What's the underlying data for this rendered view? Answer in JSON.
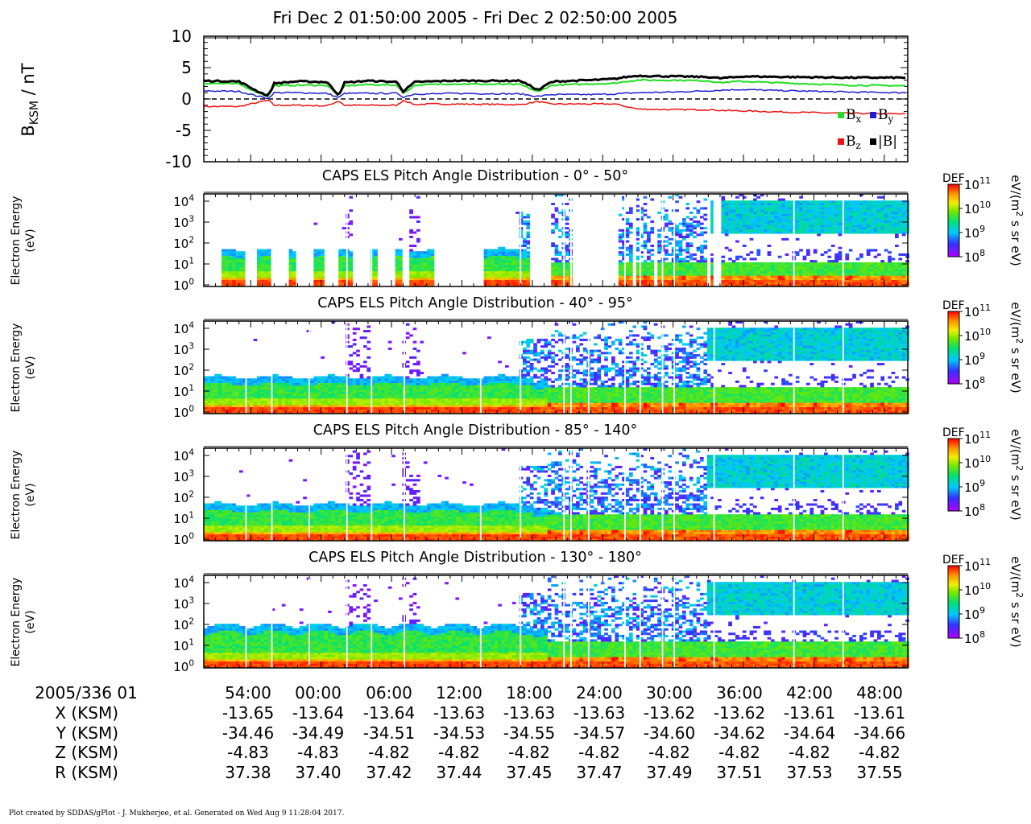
{
  "header": {
    "title": "Fri Dec 2 01:50:00 2005 - Fri Dec 2 02:50:00 2005"
  },
  "chart_data": [
    {
      "type": "line",
      "ylabel_main": "B",
      "ylabel_sub": "KSM",
      "ylabel_unit": " / nT",
      "ylim": [
        -10,
        10
      ],
      "yticks": [
        "10",
        "5",
        "0",
        "-5",
        "-10"
      ],
      "zero_line": "dashed",
      "legend": [
        {
          "main": "B",
          "sub": "x",
          "color": "#22dd22"
        },
        {
          "main": "B",
          "sub": "y",
          "color": "#1f1fd0"
        },
        {
          "main": "B",
          "sub": "z",
          "color": "#ee1111"
        },
        {
          "main": "|B|",
          "sub": "",
          "color": "#000000"
        }
      ],
      "x_minutes": [
        0,
        3,
        4.5,
        5.5,
        6,
        8,
        10.5,
        11.5,
        12,
        14,
        16.5,
        17,
        18,
        19.5,
        21,
        27,
        28.5,
        29.5,
        30,
        33,
        35,
        36,
        37,
        40,
        43,
        44,
        45.5,
        46,
        50,
        55,
        60
      ],
      "series": [
        {
          "name": "|B|",
          "color": "#000000",
          "width": 3,
          "values": [
            2.9,
            2.8,
            1.3,
            0.5,
            2.5,
            2.8,
            2.7,
            0.6,
            2.6,
            2.9,
            2.7,
            1.2,
            2.7,
            2.8,
            2.9,
            2.9,
            1.4,
            2.6,
            2.8,
            3.0,
            3.2,
            3.5,
            3.7,
            3.6,
            3.5,
            3.3,
            3.5,
            3.6,
            3.5,
            3.4,
            3.4
          ]
        },
        {
          "name": "Bx",
          "color": "#22dd22",
          "width": 2,
          "values": [
            2.5,
            2.4,
            1.1,
            0.4,
            2.1,
            2.2,
            2.2,
            0.5,
            2.1,
            2.3,
            2.2,
            0.9,
            2.2,
            2.3,
            2.4,
            2.3,
            1.1,
            2.1,
            2.2,
            2.4,
            2.5,
            2.8,
            3.0,
            3.0,
            2.9,
            2.6,
            2.8,
            2.8,
            2.5,
            2.2,
            2.1
          ]
        },
        {
          "name": "By",
          "color": "#1f1fd0",
          "width": 1.5,
          "values": [
            1.3,
            1.2,
            0.5,
            0.1,
            1.0,
            1.0,
            0.9,
            0.2,
            0.9,
            0.9,
            0.9,
            0.3,
            0.8,
            0.8,
            0.9,
            0.8,
            0.4,
            0.7,
            0.7,
            0.7,
            0.8,
            0.9,
            1.0,
            1.1,
            1.3,
            1.4,
            1.5,
            1.5,
            1.3,
            1.1,
            1.0
          ]
        },
        {
          "name": "Bz",
          "color": "#ee1111",
          "width": 1.5,
          "values": [
            -1.2,
            -1.2,
            -0.6,
            -0.2,
            -1.0,
            -1.0,
            -1.1,
            -0.3,
            -1.0,
            -1.0,
            -1.0,
            -0.2,
            -0.9,
            -0.8,
            -0.8,
            -0.9,
            -0.4,
            -0.8,
            -0.8,
            -0.8,
            -0.8,
            -1.2,
            -1.6,
            -1.7,
            -1.7,
            -1.8,
            -1.9,
            -1.9,
            -2.1,
            -2.3,
            -2.4
          ]
        }
      ]
    },
    {
      "type": "heatmap",
      "title": "CAPS ELS Pitch Angle Distribution - 0° - 50°",
      "mode": "pa1",
      "ylabel": [
        "Electron Energy",
        "(eV)"
      ],
      "yticks": [
        "10",
        "10",
        "10",
        "10",
        "10"
      ],
      "yexp": [
        "0",
        "1",
        "2",
        "3",
        "4"
      ],
      "colorbar": {
        "label": "DEF",
        "unit": "eV/(m² s sr eV)",
        "ticks": [
          "10",
          "10",
          "10",
          "10"
        ],
        "exps": [
          "11",
          "10",
          "9",
          "8"
        ]
      }
    },
    {
      "type": "heatmap",
      "title": "CAPS ELS Pitch Angle Distribution - 40° - 95°",
      "mode": "pa2",
      "ylabel": [
        "Electron Energy",
        "(eV)"
      ],
      "yticks": [
        "10",
        "10",
        "10",
        "10",
        "10"
      ],
      "yexp": [
        "0",
        "1",
        "2",
        "3",
        "4"
      ],
      "colorbar": {
        "label": "DEF",
        "unit": "eV/(m² s sr eV)",
        "ticks": [
          "10",
          "10",
          "10",
          "10"
        ],
        "exps": [
          "11",
          "10",
          "9",
          "8"
        ]
      }
    },
    {
      "type": "heatmap",
      "title": "CAPS ELS Pitch Angle Distribution - 85° - 140°",
      "mode": "pa3",
      "ylabel": [
        "Electron Energy",
        "(eV)"
      ],
      "yticks": [
        "10",
        "10",
        "10",
        "10",
        "10"
      ],
      "yexp": [
        "0",
        "1",
        "2",
        "3",
        "4"
      ],
      "colorbar": {
        "label": "DEF",
        "unit": "eV/(m² s sr eV)",
        "ticks": [
          "10",
          "10",
          "10",
          "10"
        ],
        "exps": [
          "11",
          "10",
          "9",
          "8"
        ]
      }
    },
    {
      "type": "heatmap",
      "title": "CAPS ELS Pitch Angle Distribution - 130° - 180°",
      "mode": "pa4",
      "ylabel": [
        "Electron Energy",
        "(eV)"
      ],
      "yticks": [
        "10",
        "10",
        "10",
        "10",
        "10"
      ],
      "yexp": [
        "0",
        "1",
        "2",
        "3",
        "4"
      ],
      "colorbar": {
        "label": "DEF",
        "unit": "eV/(m² s sr eV)",
        "ticks": [
          "10",
          "10",
          "10",
          "10"
        ],
        "exps": [
          "11",
          "10",
          "9",
          "8"
        ]
      }
    }
  ],
  "ephemeris": {
    "time_label": "2005/336 01",
    "times": [
      "54:00",
      "00:00",
      "06:00",
      "12:00",
      "18:00",
      "24:00",
      "30:00",
      "36:00",
      "42:00",
      "48:00"
    ],
    "rows": [
      {
        "label": "X (KSM)",
        "values": [
          "-13.65",
          "-13.64",
          "-13.64",
          "-13.63",
          "-13.63",
          "-13.63",
          "-13.62",
          "-13.62",
          "-13.61",
          "-13.61"
        ]
      },
      {
        "label": "Y (KSM)",
        "values": [
          "-34.46",
          "-34.49",
          "-34.51",
          "-34.53",
          "-34.55",
          "-34.57",
          "-34.60",
          "-34.62",
          "-34.64",
          "-34.66"
        ]
      },
      {
        "label": "Z (KSM)",
        "values": [
          "-4.83",
          "-4.83",
          "-4.82",
          "-4.82",
          "-4.82",
          "-4.82",
          "-4.82",
          "-4.82",
          "-4.82",
          "-4.82"
        ]
      },
      {
        "label": "R (KSM)",
        "values": [
          "37.38",
          "37.40",
          "37.42",
          "37.44",
          "37.45",
          "37.47",
          "37.49",
          "37.51",
          "37.53",
          "37.55"
        ]
      }
    ]
  },
  "footer": "Plot created by SDDAS/gPlot - J. Mukherjee, et al.  Generated on Wed Aug 9 11:28:04 2017."
}
